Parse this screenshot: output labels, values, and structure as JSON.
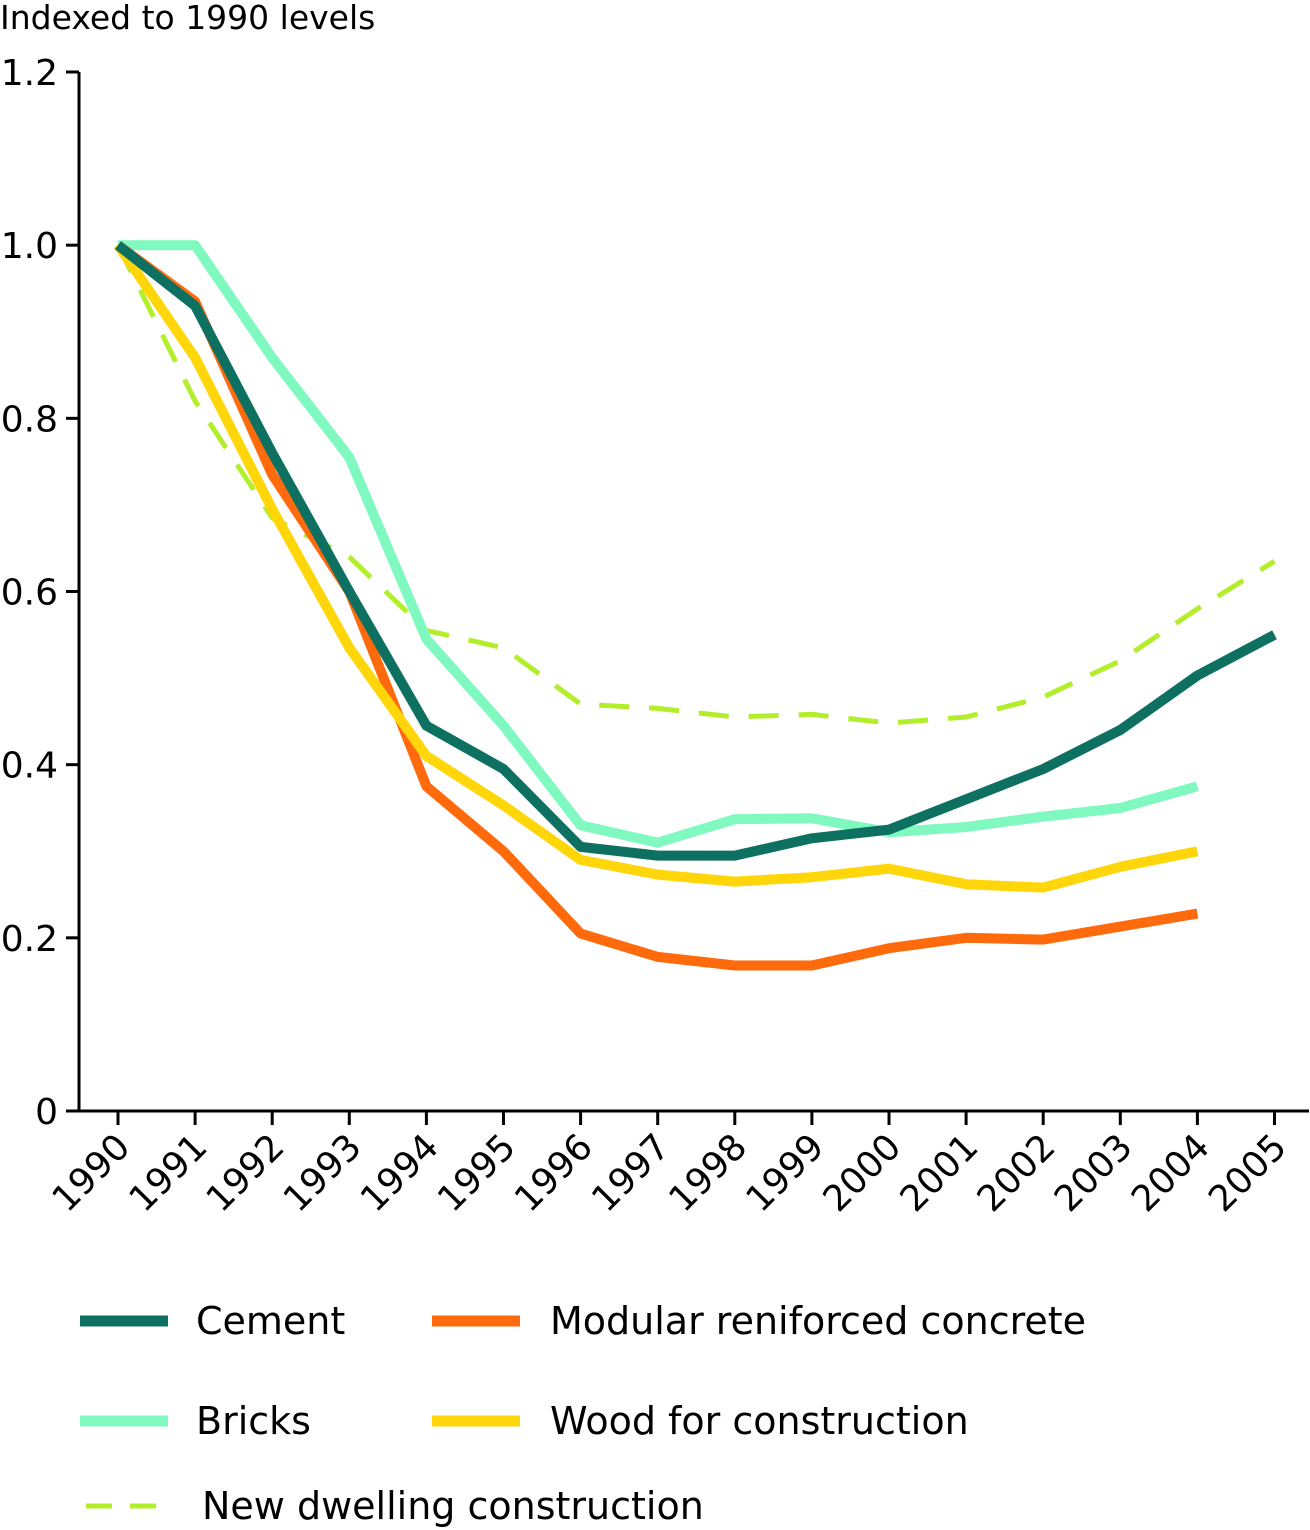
{
  "chart_data": {
    "type": "line",
    "title": "",
    "xlabel": "",
    "ylabel": "Indexed to 1990 levels",
    "ylim": [
      0,
      1.2
    ],
    "yticks": [
      "0",
      "0.2",
      "0.4",
      "0.6",
      "0.8",
      "1.0",
      "1.2"
    ],
    "x": [
      "1990",
      "1991",
      "1992",
      "1993",
      "1994",
      "1995",
      "1996",
      "1997",
      "1998",
      "1999",
      "2000",
      "2001",
      "2002",
      "2003",
      "2004",
      "2005"
    ],
    "grid": false,
    "legend_position": "bottom",
    "series": [
      {
        "name": "Cement",
        "color": "#0e7060",
        "style": "solid",
        "values": [
          1.0,
          0.93,
          0.76,
          0.6,
          0.445,
          0.395,
          0.305,
          0.295,
          0.295,
          0.315,
          0.325,
          0.36,
          0.395,
          0.44,
          0.503,
          0.55
        ]
      },
      {
        "name": "Bricks",
        "color": "#80f9c0",
        "style": "solid",
        "values": [
          1.0,
          1.0,
          0.87,
          0.755,
          0.545,
          0.445,
          0.33,
          0.31,
          0.337,
          0.338,
          0.322,
          0.328,
          0.34,
          0.35,
          0.375,
          null
        ]
      },
      {
        "name": "Modular reniforced concrete",
        "color": "#ff6a0c",
        "style": "solid",
        "values": [
          1.0,
          0.935,
          0.735,
          0.6,
          0.375,
          0.3,
          0.205,
          0.178,
          0.168,
          0.168,
          0.188,
          0.2,
          0.198,
          0.213,
          0.228,
          null
        ]
      },
      {
        "name": "Wood for construction",
        "color": "#ffd60a",
        "style": "solid",
        "values": [
          1.0,
          0.87,
          0.695,
          0.535,
          0.41,
          0.353,
          0.29,
          0.273,
          0.265,
          0.27,
          0.28,
          0.262,
          0.258,
          0.282,
          0.3,
          null
        ]
      },
      {
        "name": "New dwelling construction",
        "color": "#b2ee2a",
        "style": "dashed",
        "values": [
          1.0,
          0.82,
          0.685,
          0.64,
          0.555,
          0.535,
          0.47,
          0.465,
          0.455,
          0.458,
          0.448,
          0.455,
          0.478,
          0.52,
          0.58,
          0.635
        ]
      }
    ]
  }
}
